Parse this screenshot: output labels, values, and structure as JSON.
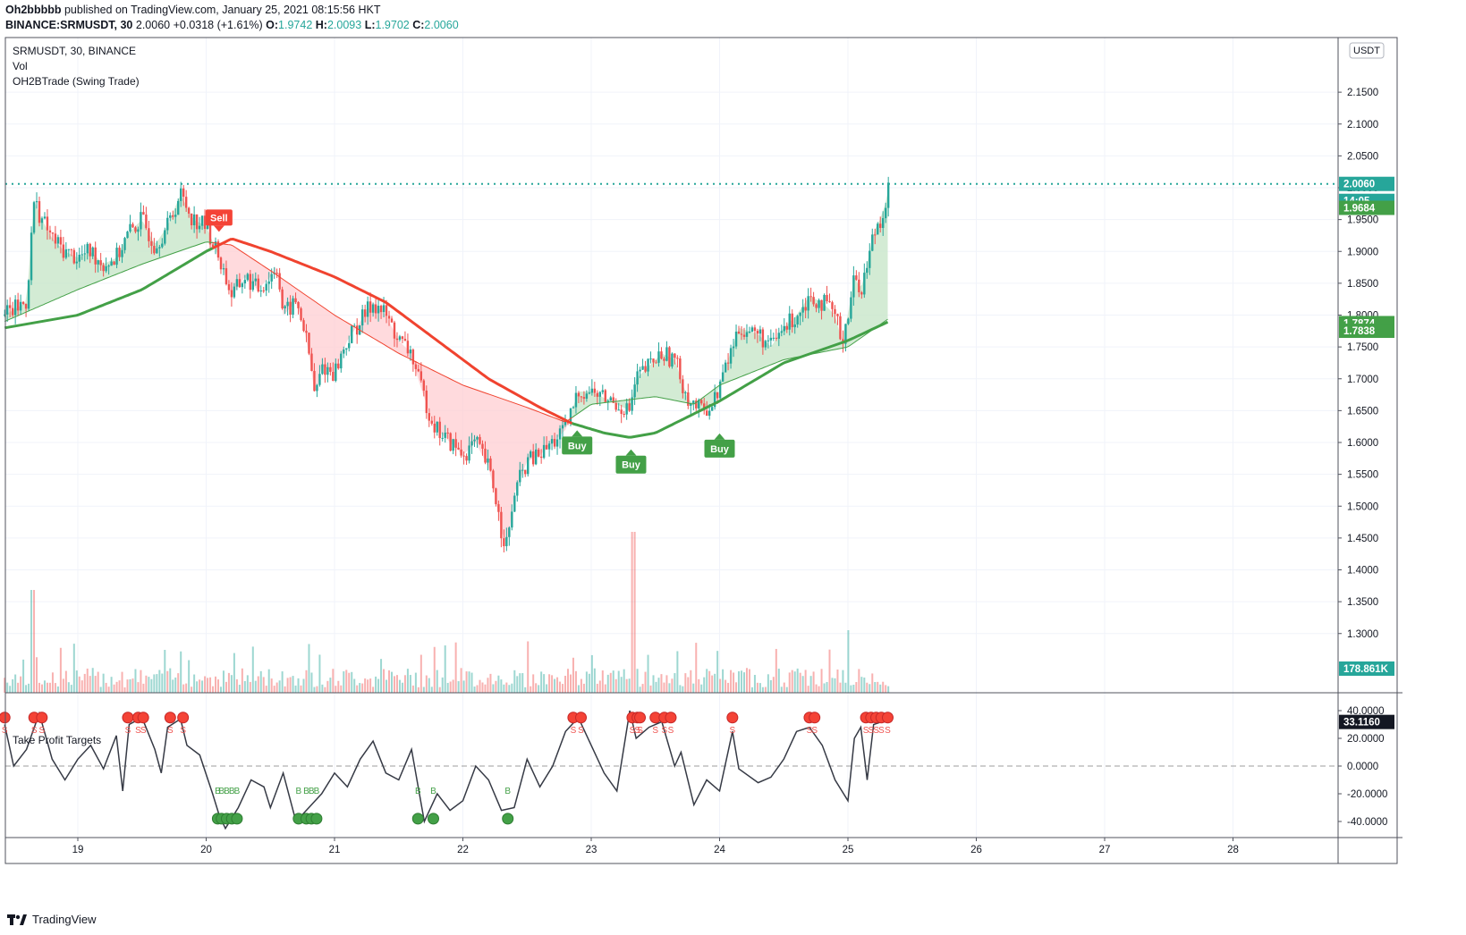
{
  "header": {
    "author": "Oh2bbbbb",
    "published_text": "published on TradingView.com, January 25, 2021 08:15:56 HKT",
    "symbol_line": "BINANCE:SRMUSDT, 30",
    "last": "2.0060",
    "change": "+0.0318 (+1.61%)",
    "o_label": "O:",
    "o": "1.9742",
    "h_label": "H:",
    "h": "2.0093",
    "l_label": "L:",
    "l": "1.9702",
    "c_label": "C:",
    "c": "2.0060"
  },
  "legend": {
    "symbol": "SRMUSDT, 30, BINANCE",
    "vol": "Vol",
    "indicator": "OH2BTrade (Swing Trade)",
    "oscillator": "Take Profit Targets"
  },
  "currency_badge": "USDT",
  "price_badges": {
    "current": "2.0060",
    "countdown": "14:05",
    "ma_fast": "1.9684",
    "ma_a": "1.7874",
    "ma_b": "1.7838",
    "volume": "178.861K",
    "osc": "33.1160"
  },
  "signals": [
    {
      "label": "Sell",
      "x": 20.1,
      "price": 1.935,
      "type": "sell"
    },
    {
      "label": "Buy",
      "x": 22.89,
      "price": 1.615,
      "type": "buy"
    },
    {
      "label": "Buy",
      "x": 23.31,
      "price": 1.585,
      "type": "buy"
    },
    {
      "label": "Buy",
      "x": 24.0,
      "price": 1.61,
      "type": "buy"
    }
  ],
  "footer": {
    "brand": "TradingView"
  },
  "colors": {
    "up": "#26a69a",
    "down": "#ef5350",
    "ma_green": "#43a047",
    "ma_red": "#f0432f",
    "fill_green": "#c8e6c9",
    "fill_red": "#ffcdd2",
    "buy": "#43a047",
    "sell": "#f44336",
    "price_line": "#26a69a"
  },
  "chart_data": {
    "type": "candlestick",
    "title": "SRMUSDT, 30, BINANCE",
    "x_ticks": [
      "19",
      "20",
      "21",
      "22",
      "23",
      "24",
      "25",
      "26",
      "27",
      "28"
    ],
    "x_tick_values": [
      19,
      20,
      21,
      22,
      23,
      24,
      25,
      26,
      27,
      28
    ],
    "xlim": [
      18.43,
      28.8
    ],
    "y_ticks": [
      "2.1500",
      "2.1000",
      "2.0500",
      "2.0000",
      "1.9500",
      "1.9000",
      "1.8500",
      "1.8000",
      "1.7500",
      "1.7000",
      "1.6500",
      "1.6000",
      "1.5500",
      "1.5000",
      "1.4500",
      "1.4000",
      "1.3500",
      "1.3000"
    ],
    "ylim": [
      1.25,
      2.17
    ],
    "price_path": [
      [
        18.43,
        1.8
      ],
      [
        18.6,
        1.82
      ],
      [
        18.66,
        1.98
      ],
      [
        18.72,
        1.95
      ],
      [
        18.8,
        1.92
      ],
      [
        18.9,
        1.9
      ],
      [
        19.0,
        1.89
      ],
      [
        19.1,
        1.9
      ],
      [
        19.2,
        1.88
      ],
      [
        19.3,
        1.89
      ],
      [
        19.4,
        1.93
      ],
      [
        19.5,
        1.95
      ],
      [
        19.6,
        1.91
      ],
      [
        19.7,
        1.94
      ],
      [
        19.8,
        1.99
      ],
      [
        19.9,
        1.95
      ],
      [
        20.0,
        1.94
      ],
      [
        20.1,
        1.89
      ],
      [
        20.2,
        1.83
      ],
      [
        20.3,
        1.86
      ],
      [
        20.4,
        1.84
      ],
      [
        20.5,
        1.86
      ],
      [
        20.55,
        1.88
      ],
      [
        20.6,
        1.8
      ],
      [
        20.7,
        1.82
      ],
      [
        20.75,
        1.79
      ],
      [
        20.8,
        1.74
      ],
      [
        20.85,
        1.67
      ],
      [
        20.9,
        1.72
      ],
      [
        21.0,
        1.71
      ],
      [
        21.1,
        1.76
      ],
      [
        21.2,
        1.79
      ],
      [
        21.3,
        1.82
      ],
      [
        21.4,
        1.8
      ],
      [
        21.5,
        1.76
      ],
      [
        21.6,
        1.74
      ],
      [
        21.65,
        1.7
      ],
      [
        21.7,
        1.67
      ],
      [
        21.75,
        1.64
      ],
      [
        21.8,
        1.62
      ],
      [
        21.9,
        1.6
      ],
      [
        22.0,
        1.58
      ],
      [
        22.1,
        1.6
      ],
      [
        22.2,
        1.56
      ],
      [
        22.25,
        1.52
      ],
      [
        22.3,
        1.46
      ],
      [
        22.35,
        1.44
      ],
      [
        22.4,
        1.52
      ],
      [
        22.5,
        1.57
      ],
      [
        22.6,
        1.58
      ],
      [
        22.7,
        1.6
      ],
      [
        22.8,
        1.62
      ],
      [
        22.9,
        1.68
      ],
      [
        23.0,
        1.68
      ],
      [
        23.1,
        1.67
      ],
      [
        23.2,
        1.66
      ],
      [
        23.3,
        1.65
      ],
      [
        23.35,
        1.7
      ],
      [
        23.45,
        1.72
      ],
      [
        23.55,
        1.74
      ],
      [
        23.65,
        1.73
      ],
      [
        23.75,
        1.67
      ],
      [
        23.85,
        1.65
      ],
      [
        23.95,
        1.66
      ],
      [
        24.05,
        1.72
      ],
      [
        24.15,
        1.78
      ],
      [
        24.3,
        1.77
      ],
      [
        24.4,
        1.75
      ],
      [
        24.5,
        1.78
      ],
      [
        24.6,
        1.8
      ],
      [
        24.7,
        1.83
      ],
      [
        24.8,
        1.82
      ],
      [
        24.9,
        1.8
      ],
      [
        24.95,
        1.76
      ],
      [
        25.0,
        1.8
      ],
      [
        25.05,
        1.86
      ],
      [
        25.1,
        1.84
      ],
      [
        25.15,
        1.88
      ],
      [
        25.2,
        1.93
      ],
      [
        25.25,
        1.95
      ],
      [
        25.3,
        1.98
      ],
      [
        25.32,
        2.006
      ]
    ],
    "moving_average_fast": [
      [
        18.43,
        1.79
      ],
      [
        19.0,
        1.84
      ],
      [
        19.5,
        1.88
      ],
      [
        20.0,
        1.915
      ],
      [
        20.2,
        1.91
      ],
      [
        20.5,
        1.87
      ],
      [
        21.0,
        1.8
      ],
      [
        21.5,
        1.74
      ],
      [
        22.0,
        1.69
      ],
      [
        22.5,
        1.655
      ],
      [
        22.8,
        1.632
      ],
      [
        23.0,
        1.66
      ],
      [
        23.5,
        1.672
      ],
      [
        23.8,
        1.66
      ],
      [
        24.0,
        1.69
      ],
      [
        24.5,
        1.73
      ],
      [
        25.0,
        1.75
      ],
      [
        25.32,
        1.795
      ]
    ],
    "moving_average_slow": [
      [
        18.43,
        1.78
      ],
      [
        19.0,
        1.8
      ],
      [
        19.5,
        1.84
      ],
      [
        20.0,
        1.9
      ],
      [
        20.2,
        1.92
      ],
      [
        20.5,
        1.9
      ],
      [
        21.0,
        1.86
      ],
      [
        21.4,
        1.82
      ],
      [
        21.8,
        1.76
      ],
      [
        22.2,
        1.7
      ],
      [
        22.6,
        1.655
      ],
      [
        22.85,
        1.63
      ],
      [
        23.1,
        1.615
      ],
      [
        23.3,
        1.608
      ],
      [
        23.5,
        1.615
      ],
      [
        23.8,
        1.645
      ],
      [
        24.0,
        1.665
      ],
      [
        24.5,
        1.725
      ],
      [
        25.0,
        1.76
      ],
      [
        25.32,
        1.79
      ]
    ],
    "volume_scale_max": "1.5M",
    "oscillator": {
      "name": "Take Profit Targets",
      "y_ticks": [
        "40.0000",
        "20.0000",
        "0.0000",
        "-20.0000",
        "-40.0000"
      ],
      "ylim": [
        -52,
        47
      ],
      "zero_line": 0,
      "path": [
        [
          18.43,
          30
        ],
        [
          18.5,
          0
        ],
        [
          18.6,
          12
        ],
        [
          18.7,
          38
        ],
        [
          18.8,
          5
        ],
        [
          18.9,
          -10
        ],
        [
          19.0,
          5
        ],
        [
          19.1,
          15
        ],
        [
          19.2,
          -2
        ],
        [
          19.3,
          22
        ],
        [
          19.35,
          -18
        ],
        [
          19.4,
          30
        ],
        [
          19.5,
          35
        ],
        [
          19.6,
          12
        ],
        [
          19.65,
          -5
        ],
        [
          19.7,
          28
        ],
        [
          19.8,
          34
        ],
        [
          19.85,
          15
        ],
        [
          19.95,
          8
        ],
        [
          20.05,
          -20
        ],
        [
          20.1,
          -35
        ],
        [
          20.15,
          -45
        ],
        [
          20.25,
          -30
        ],
        [
          20.35,
          -10
        ],
        [
          20.45,
          -15
        ],
        [
          20.5,
          -30
        ],
        [
          20.6,
          -5
        ],
        [
          20.7,
          -40
        ],
        [
          20.8,
          -30
        ],
        [
          20.9,
          -20
        ],
        [
          21.0,
          -5
        ],
        [
          21.1,
          -15
        ],
        [
          21.2,
          5
        ],
        [
          21.3,
          18
        ],
        [
          21.4,
          -5
        ],
        [
          21.5,
          -10
        ],
        [
          21.6,
          12
        ],
        [
          21.7,
          -40
        ],
        [
          21.8,
          -20
        ],
        [
          21.9,
          -32
        ],
        [
          22.0,
          -25
        ],
        [
          22.1,
          0
        ],
        [
          22.2,
          -10
        ],
        [
          22.3,
          -32
        ],
        [
          22.4,
          -30
        ],
        [
          22.5,
          5
        ],
        [
          22.6,
          -15
        ],
        [
          22.7,
          0
        ],
        [
          22.8,
          25
        ],
        [
          22.9,
          35
        ],
        [
          23.0,
          15
        ],
        [
          23.1,
          -5
        ],
        [
          23.2,
          -18
        ],
        [
          23.3,
          40
        ],
        [
          23.35,
          20
        ],
        [
          23.45,
          28
        ],
        [
          23.55,
          32
        ],
        [
          23.65,
          0
        ],
        [
          23.7,
          10
        ],
        [
          23.8,
          -28
        ],
        [
          23.9,
          -10
        ],
        [
          24.0,
          -18
        ],
        [
          24.1,
          25
        ],
        [
          24.15,
          -2
        ],
        [
          24.3,
          -12
        ],
        [
          24.4,
          -8
        ],
        [
          24.5,
          5
        ],
        [
          24.6,
          25
        ],
        [
          24.7,
          28
        ],
        [
          24.8,
          15
        ],
        [
          24.9,
          -10
        ],
        [
          25.0,
          -25
        ],
        [
          25.05,
          20
        ],
        [
          25.1,
          28
        ],
        [
          25.15,
          -10
        ],
        [
          25.2,
          30
        ],
        [
          25.3,
          33.116
        ]
      ],
      "markers": [
        {
          "kind": "S",
          "x": [
            18.43,
            18.66,
            18.72,
            19.39,
            19.47,
            19.51,
            19.72,
            19.82,
            22.86,
            22.92,
            23.32,
            23.36,
            23.38,
            23.5,
            23.57,
            23.62,
            24.1,
            24.7,
            24.74,
            25.14,
            25.18,
            25.22,
            25.26,
            25.31
          ]
        },
        {
          "kind": "B",
          "x": [
            20.09,
            20.12,
            20.16,
            20.2,
            20.24,
            20.72,
            20.78,
            20.82,
            20.86,
            21.65,
            21.77,
            22.35
          ]
        }
      ]
    }
  }
}
